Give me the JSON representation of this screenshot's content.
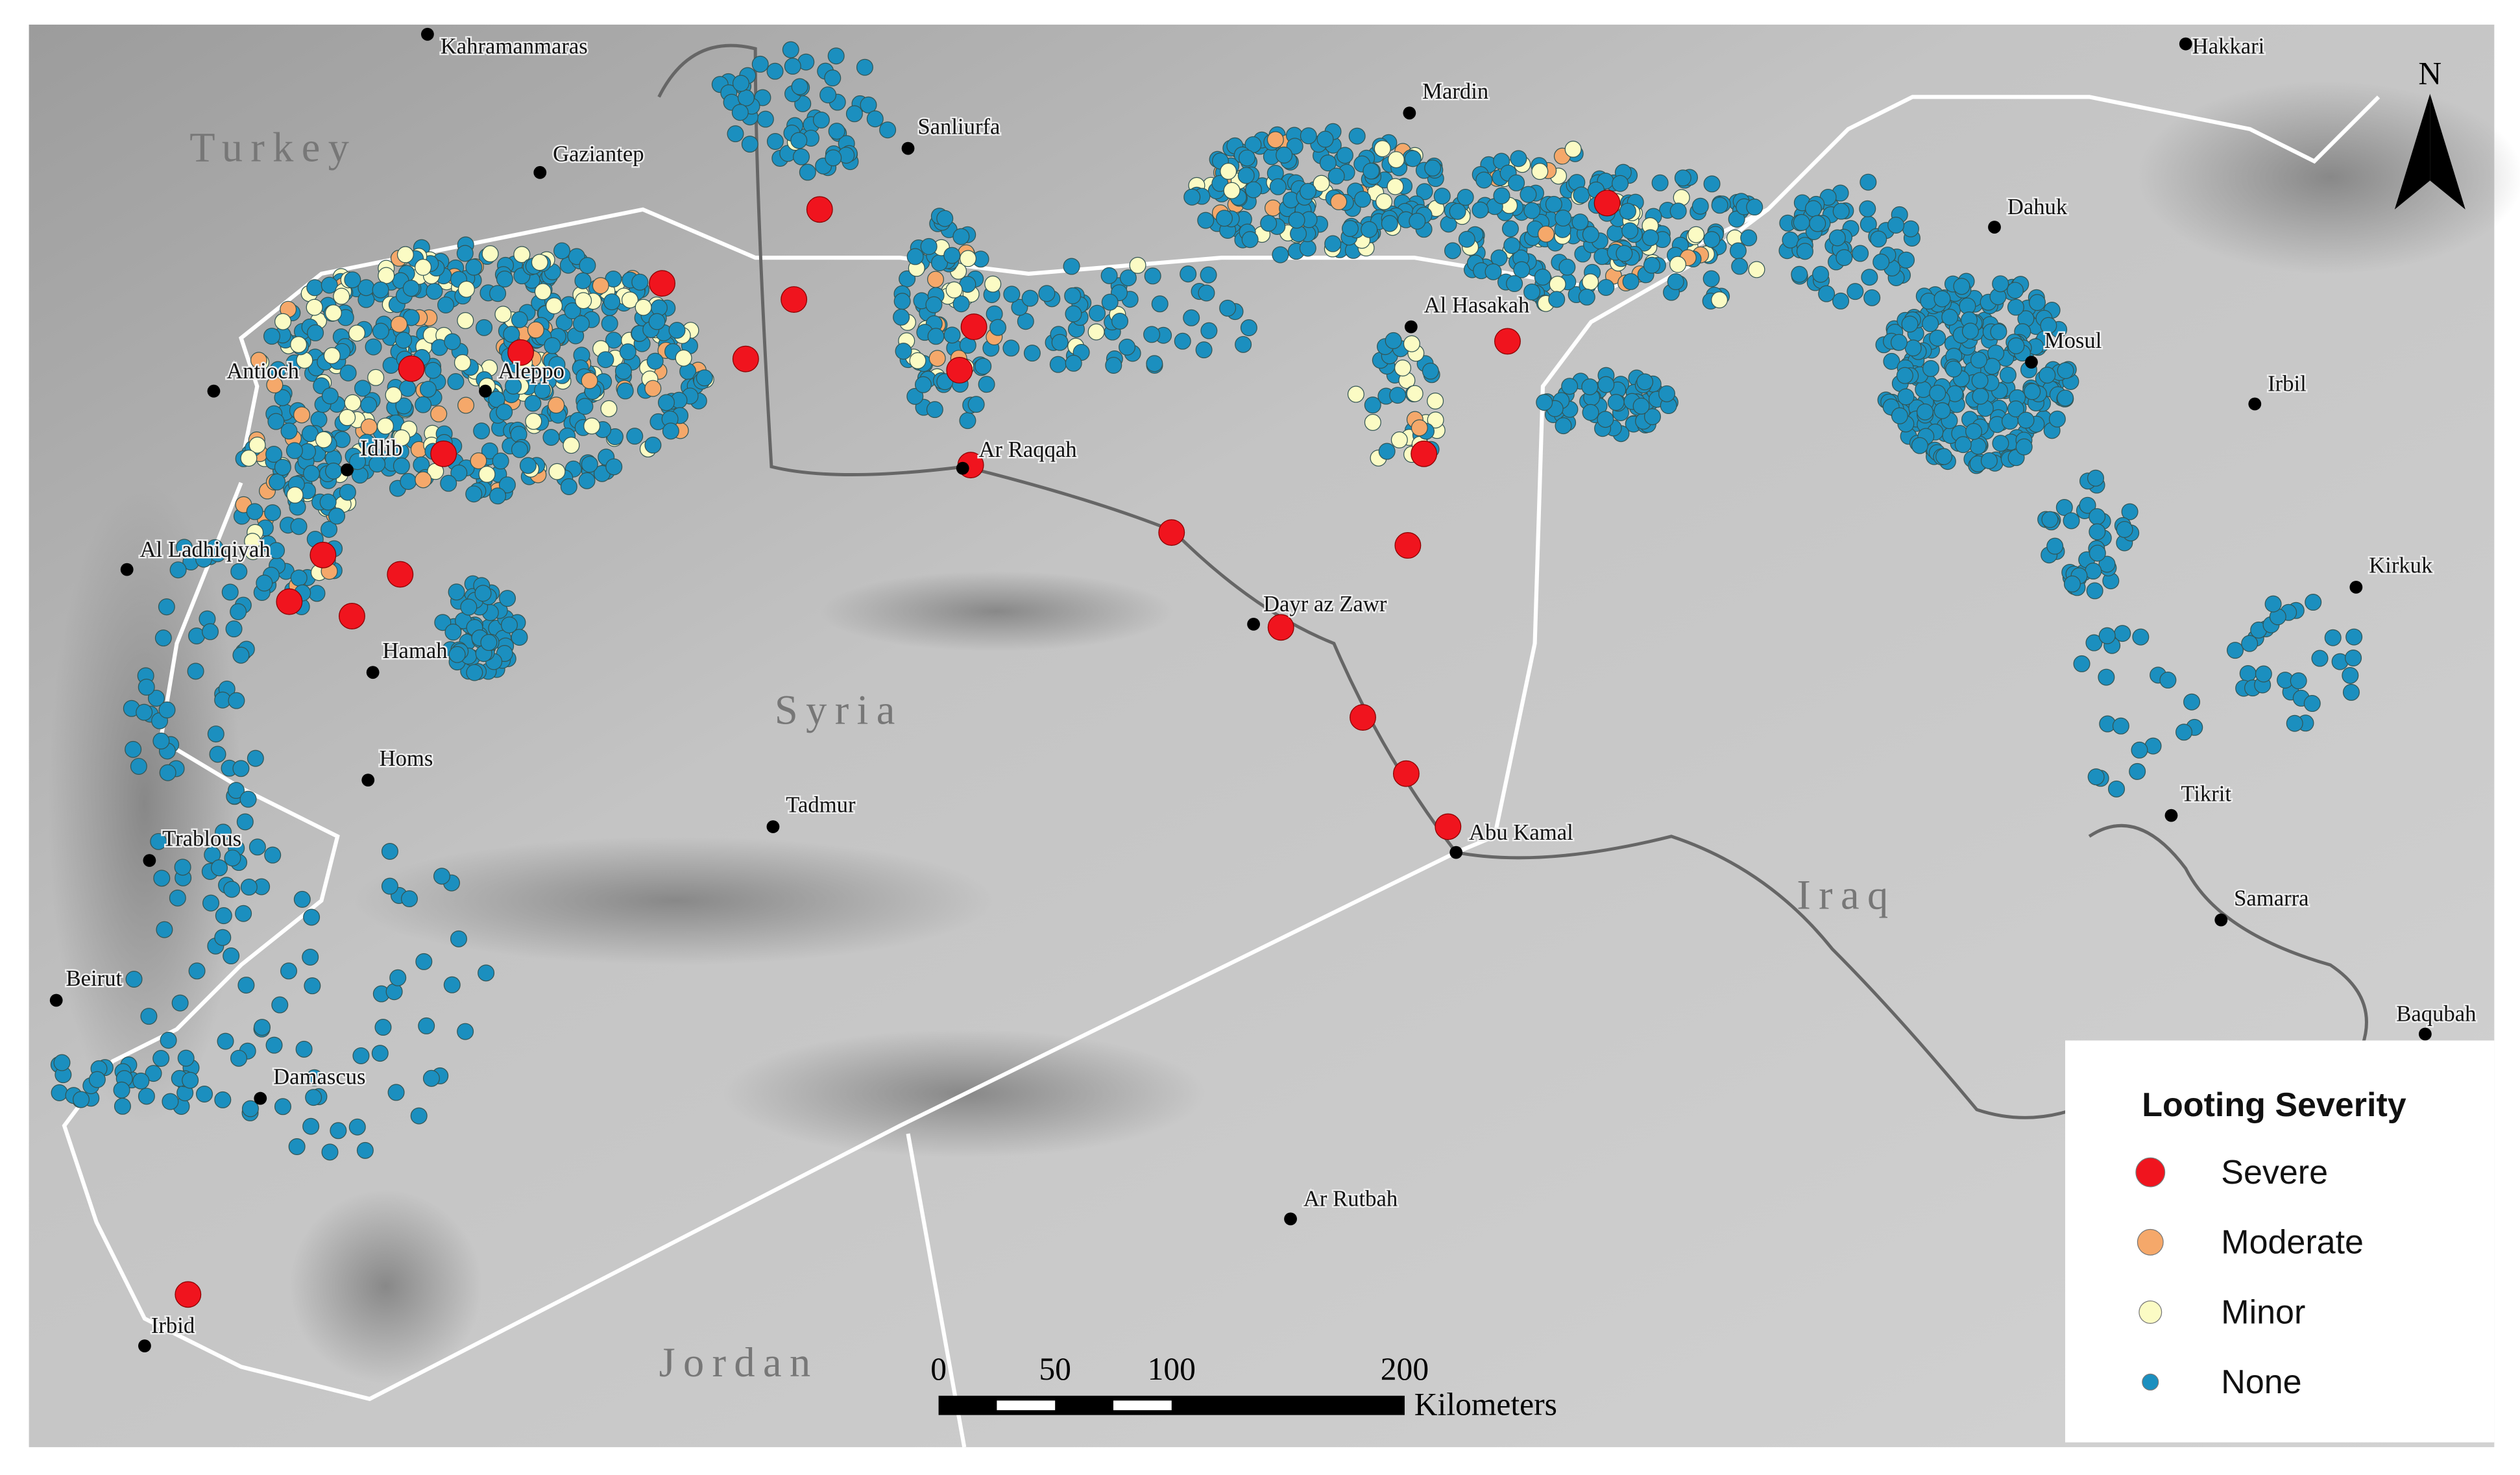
{
  "map": {
    "countries": [
      "Turkey",
      "Syria",
      "Iraq",
      "Jordan"
    ],
    "cities": [
      "Kahramanmaras",
      "Gaziantep",
      "Sanliurfa",
      "Mardin",
      "Hakkari",
      "Dahuk",
      "Antioch",
      "Aleppo",
      "Idlib",
      "Al Ladhiqiyah",
      "Hamah",
      "Homs",
      "Trablous",
      "Beirut",
      "Damascus",
      "Irbid",
      "Ar Raqqah",
      "Al Hasakah",
      "Mosul",
      "Irbil",
      "Kirkuk",
      "Dayr az Zawr",
      "Tadmur",
      "Abu Kamal",
      "Tikrit",
      "Samarra",
      "Baqubah",
      "Ar Rutbah"
    ],
    "north": "N",
    "legend": {
      "title": "Looting Severity",
      "entries": [
        {
          "label": "Severe",
          "color": "#f0141e"
        },
        {
          "label": "Moderate",
          "color": "#f5a86a"
        },
        {
          "label": "Minor",
          "color": "#fbfbc4"
        },
        {
          "label": "None",
          "color": "#1b8fbf"
        }
      ]
    },
    "scale": {
      "ticks": [
        0,
        50,
        100,
        200
      ],
      "unit": "Kilometers"
    }
  }
}
